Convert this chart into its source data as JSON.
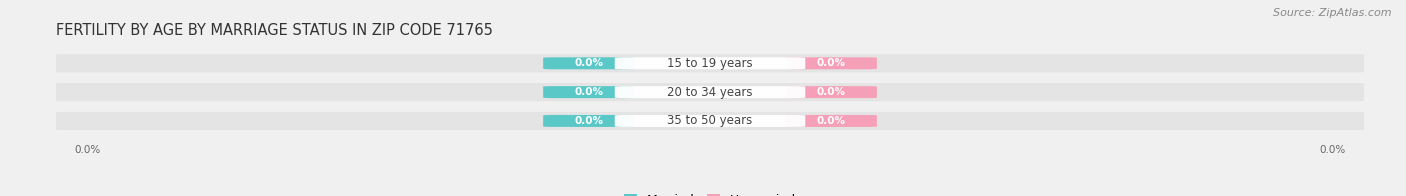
{
  "title": "FERTILITY BY AGE BY MARRIAGE STATUS IN ZIP CODE 71765",
  "source_text": "Source: ZipAtlas.com",
  "categories": [
    "15 to 19 years",
    "20 to 34 years",
    "35 to 50 years"
  ],
  "married_values": [
    0.0,
    0.0,
    0.0
  ],
  "unmarried_values": [
    0.0,
    0.0,
    0.0
  ],
  "married_color": "#5bc8c8",
  "unmarried_color": "#f5a0b8",
  "bar_bg_color": "#e4e4e4",
  "title_fontsize": 10.5,
  "source_fontsize": 8,
  "label_fontsize": 7.5,
  "category_fontsize": 8.5,
  "legend_fontsize": 9,
  "bg_color": "#f0f0f0",
  "axis_tick_color": "#666666",
  "category_label_color": "#444444",
  "left_tick_label": "0.0%",
  "right_tick_label": "0.0%"
}
